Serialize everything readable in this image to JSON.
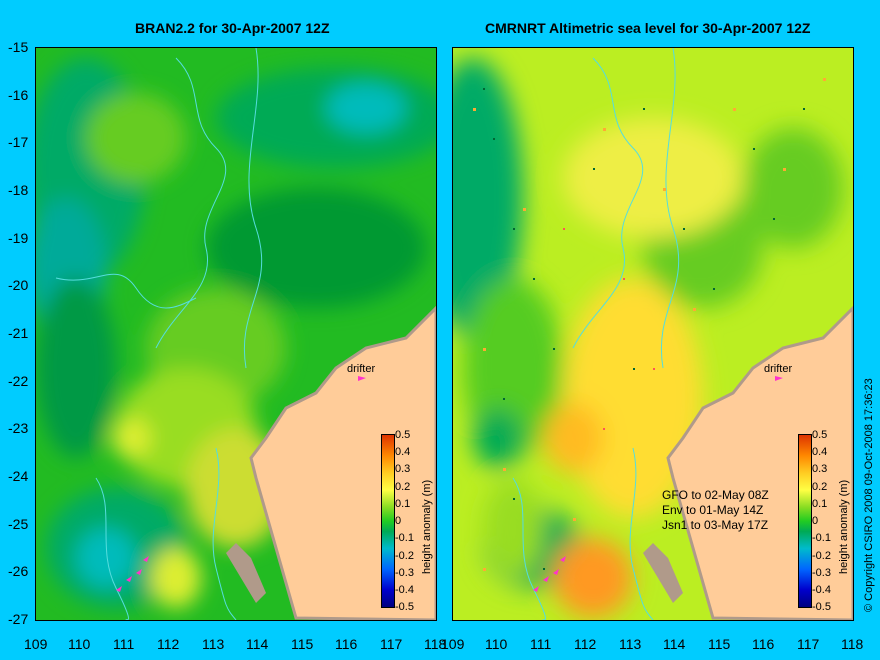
{
  "panels": {
    "left": {
      "title": "BRAN2.2 for 30-Apr-2007 12Z"
    },
    "right": {
      "title": "CMRNRT Altimetric sea level  for 30-Apr-2007 12Z"
    }
  },
  "axes": {
    "lat_labels": [
      "-15",
      "-16",
      "-17",
      "-18",
      "-19",
      "-20",
      "-21",
      "-22",
      "-23",
      "-24",
      "-25",
      "-26",
      "-27"
    ],
    "lon_labels": [
      "109",
      "110",
      "111",
      "112",
      "113",
      "114",
      "115",
      "116",
      "117",
      "118"
    ]
  },
  "drifter_label": "drifter",
  "colorbar": {
    "label": "height anomaly (m)",
    "ticks": [
      "0.5",
      "0.4",
      "0.3",
      "0.2",
      "0.1",
      "0",
      "-0.1",
      "-0.2",
      "-0.3",
      "-0.4",
      "-0.5"
    ]
  },
  "altimeter_legend": [
    "GFO to 02-May 08Z",
    "Env to 01-May 14Z",
    "Jsn1 to 03-May 17Z"
  ],
  "side_text": "© Copyright CSIRO 2008   09-Oct-2008 17:36:23",
  "colors": {
    "background": "#00ccff",
    "land": "#ffcc99",
    "land_edge": "#b09a8a",
    "drifter": "#ff33cc"
  }
}
